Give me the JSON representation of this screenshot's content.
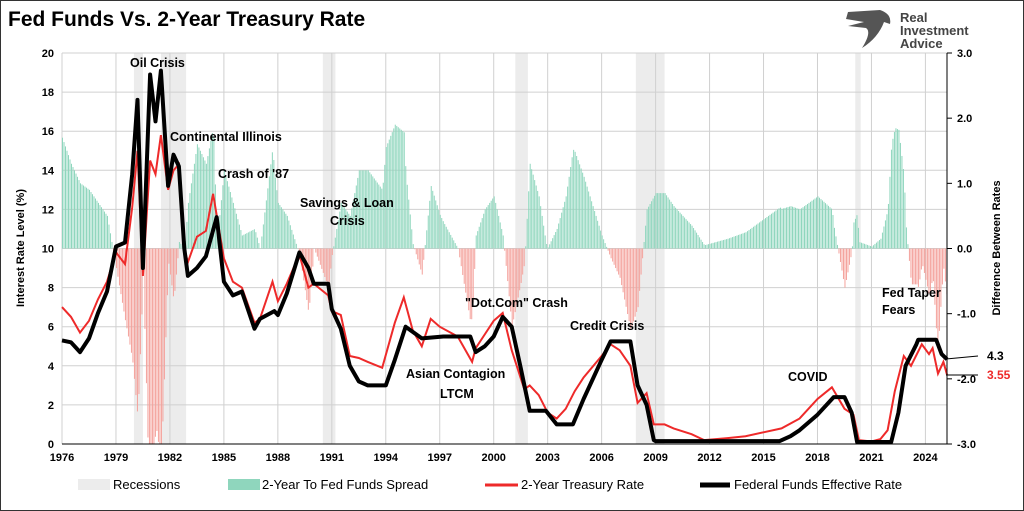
{
  "chart_data": {
    "type": "line",
    "title": "Fed Funds Vs. 2-Year Treasury Rate",
    "ylabel": "Interest Rate Level (%)",
    "y2label": "Difference Between Rates",
    "ylim": [
      0,
      20
    ],
    "y2lim": [
      -3.0,
      3.0
    ],
    "xlim": [
      1976,
      2025.2
    ],
    "x_ticks": [
      "1976",
      "1979",
      "1982",
      "1985",
      "1988",
      "1991",
      "1994",
      "1997",
      "2000",
      "2003",
      "2006",
      "2009",
      "2012",
      "2015",
      "2018",
      "2021",
      "2024"
    ],
    "y_ticks": [
      "0",
      "2",
      "4",
      "6",
      "8",
      "10",
      "12",
      "14",
      "16",
      "18",
      "20"
    ],
    "y2_ticks": [
      "-3.0",
      "-2.0",
      "-1.0",
      "0.0",
      "1.0",
      "2.0",
      "3.0"
    ],
    "grid": true,
    "legend_position": "bottom",
    "colors": {
      "recession": "#ececec",
      "spread_pos": "#8fd6bd",
      "spread_neg": "#f4a29c",
      "two_year": "#ee2a2a",
      "fed_funds": "#000000"
    },
    "recessions": [
      [
        1980.0,
        1980.5
      ],
      [
        1981.5,
        1982.9
      ],
      [
        1990.5,
        1991.2
      ],
      [
        2001.2,
        2001.9
      ],
      [
        2007.9,
        2009.5
      ],
      [
        2020.1,
        2020.4
      ]
    ],
    "series": [
      {
        "name": "Federal Funds Effective Rate",
        "points": [
          [
            1976,
            5.3
          ],
          [
            1976.5,
            5.2
          ],
          [
            1977,
            4.7
          ],
          [
            1977.5,
            5.4
          ],
          [
            1978,
            6.7
          ],
          [
            1978.5,
            7.8
          ],
          [
            1979,
            10.1
          ],
          [
            1979.5,
            10.3
          ],
          [
            1979.9,
            13.8
          ],
          [
            1980.2,
            17.6
          ],
          [
            1980.5,
            9.0
          ],
          [
            1980.9,
            18.9
          ],
          [
            1981.2,
            16.5
          ],
          [
            1981.5,
            19.1
          ],
          [
            1981.9,
            13.2
          ],
          [
            1982.2,
            14.8
          ],
          [
            1982.5,
            14.2
          ],
          [
            1982.8,
            10.0
          ],
          [
            1983,
            8.6
          ],
          [
            1983.5,
            9.0
          ],
          [
            1984,
            9.6
          ],
          [
            1984.6,
            11.6
          ],
          [
            1985,
            8.3
          ],
          [
            1985.5,
            7.6
          ],
          [
            1986,
            7.8
          ],
          [
            1986.7,
            5.9
          ],
          [
            1987,
            6.4
          ],
          [
            1987.8,
            6.8
          ],
          [
            1988,
            6.6
          ],
          [
            1988.5,
            7.7
          ],
          [
            1989.2,
            9.8
          ],
          [
            1989.7,
            9.0
          ],
          [
            1990,
            8.2
          ],
          [
            1990.8,
            8.2
          ],
          [
            1991,
            6.9
          ],
          [
            1991.5,
            5.9
          ],
          [
            1992,
            4.0
          ],
          [
            1992.5,
            3.2
          ],
          [
            1993,
            3.0
          ],
          [
            1994,
            3.0
          ],
          [
            1994.5,
            4.3
          ],
          [
            1995.1,
            6.0
          ],
          [
            1996,
            5.4
          ],
          [
            1997.2,
            5.5
          ],
          [
            1998.7,
            5.5
          ],
          [
            1999,
            4.7
          ],
          [
            1999.5,
            5.0
          ],
          [
            2000,
            5.5
          ],
          [
            2000.5,
            6.5
          ],
          [
            2001,
            6.0
          ],
          [
            2001.5,
            3.9
          ],
          [
            2002,
            1.7
          ],
          [
            2002.9,
            1.7
          ],
          [
            2003.5,
            1.0
          ],
          [
            2004.4,
            1.0
          ],
          [
            2005,
            2.3
          ],
          [
            2006,
            4.3
          ],
          [
            2006.5,
            5.25
          ],
          [
            2007.6,
            5.25
          ],
          [
            2008,
            3.0
          ],
          [
            2008.5,
            2.0
          ],
          [
            2008.9,
            0.2
          ],
          [
            2009,
            0.15
          ],
          [
            2015.9,
            0.15
          ],
          [
            2016.5,
            0.4
          ],
          [
            2017,
            0.7
          ],
          [
            2018,
            1.5
          ],
          [
            2018.9,
            2.4
          ],
          [
            2019.5,
            2.4
          ],
          [
            2019.9,
            1.6
          ],
          [
            2020.2,
            0.1
          ],
          [
            2022.1,
            0.1
          ],
          [
            2022.5,
            1.6
          ],
          [
            2022.9,
            4.0
          ],
          [
            2023.5,
            5.1
          ],
          [
            2023.6,
            5.33
          ],
          [
            2024.6,
            5.33
          ],
          [
            2024.9,
            4.6
          ],
          [
            2025.2,
            4.33
          ]
        ]
      },
      {
        "name": "2-Year Treasury Rate",
        "points": [
          [
            1976,
            7.0
          ],
          [
            1976.5,
            6.5
          ],
          [
            1977,
            5.7
          ],
          [
            1977.5,
            6.3
          ],
          [
            1978,
            7.4
          ],
          [
            1978.5,
            8.3
          ],
          [
            1979,
            9.8
          ],
          [
            1979.5,
            9.2
          ],
          [
            1979.9,
            12.1
          ],
          [
            1980.2,
            15.0
          ],
          [
            1980.5,
            8.6
          ],
          [
            1980.9,
            14.5
          ],
          [
            1981.2,
            13.8
          ],
          [
            1981.5,
            15.8
          ],
          [
            1981.9,
            13.0
          ],
          [
            1982.2,
            14.0
          ],
          [
            1982.5,
            14.3
          ],
          [
            1982.8,
            10.0
          ],
          [
            1983,
            9.3
          ],
          [
            1983.5,
            10.6
          ],
          [
            1984,
            10.9
          ],
          [
            1984.4,
            12.8
          ],
          [
            1985,
            9.5
          ],
          [
            1985.5,
            8.3
          ],
          [
            1986,
            8.0
          ],
          [
            1986.7,
            6.2
          ],
          [
            1987,
            6.4
          ],
          [
            1987.7,
            8.3
          ],
          [
            1988,
            7.3
          ],
          [
            1988.5,
            8.2
          ],
          [
            1989.2,
            9.7
          ],
          [
            1989.7,
            8.0
          ],
          [
            1990,
            8.2
          ],
          [
            1990.8,
            7.6
          ],
          [
            1991,
            6.8
          ],
          [
            1991.5,
            6.6
          ],
          [
            1992,
            4.5
          ],
          [
            1992.5,
            4.4
          ],
          [
            1993,
            4.2
          ],
          [
            1993.8,
            3.9
          ],
          [
            1994.5,
            6.2
          ],
          [
            1995,
            7.5
          ],
          [
            1995.5,
            5.8
          ],
          [
            1996,
            5.0
          ],
          [
            1996.5,
            6.4
          ],
          [
            1997,
            6.0
          ],
          [
            1998,
            5.5
          ],
          [
            1998.8,
            4.2
          ],
          [
            1999,
            4.9
          ],
          [
            1999.5,
            5.6
          ],
          [
            2000,
            6.3
          ],
          [
            2000.5,
            6.7
          ],
          [
            2001,
            4.8
          ],
          [
            2001.7,
            2.8
          ],
          [
            2002,
            3.0
          ],
          [
            2002.5,
            2.5
          ],
          [
            2003,
            1.6
          ],
          [
            2003.5,
            1.3
          ],
          [
            2004,
            1.8
          ],
          [
            2004.5,
            2.7
          ],
          [
            2005,
            3.4
          ],
          [
            2006,
            4.5
          ],
          [
            2006.5,
            5.1
          ],
          [
            2007,
            4.8
          ],
          [
            2007.6,
            4.0
          ],
          [
            2008,
            2.1
          ],
          [
            2008.5,
            2.6
          ],
          [
            2008.9,
            1.0
          ],
          [
            2009.5,
            1.0
          ],
          [
            2010,
            0.8
          ],
          [
            2011,
            0.5
          ],
          [
            2011.7,
            0.2
          ],
          [
            2013,
            0.3
          ],
          [
            2014,
            0.4
          ],
          [
            2015,
            0.6
          ],
          [
            2016,
            0.8
          ],
          [
            2017,
            1.3
          ],
          [
            2018,
            2.3
          ],
          [
            2018.8,
            2.9
          ],
          [
            2019.5,
            1.8
          ],
          [
            2020,
            1.5
          ],
          [
            2020.3,
            0.2
          ],
          [
            2021,
            0.13
          ],
          [
            2021.5,
            0.25
          ],
          [
            2021.9,
            0.7
          ],
          [
            2022.3,
            2.7
          ],
          [
            2022.8,
            4.5
          ],
          [
            2023.2,
            4.0
          ],
          [
            2023.8,
            5.1
          ],
          [
            2024.2,
            4.6
          ],
          [
            2024.4,
            4.9
          ],
          [
            2024.7,
            3.6
          ],
          [
            2025,
            4.2
          ],
          [
            2025.2,
            3.55
          ]
        ]
      }
    ],
    "end_labels": {
      "fed_funds": "4.3",
      "two_year": "3.55"
    },
    "annotations": [
      {
        "text": "Oil Crisis"
      },
      {
        "text": "Continental Illinois"
      },
      {
        "text": "Crash of '87"
      },
      {
        "text": "Savings & Loan"
      },
      {
        "text": "Crisis"
      },
      {
        "text": "\"Dot.Com\" Crash"
      },
      {
        "text": "Credit Crisis"
      },
      {
        "text": "Asian Contagion"
      },
      {
        "text": "LTCM"
      },
      {
        "text": "COVID"
      },
      {
        "text": "Fed Taper"
      },
      {
        "text": "Fears"
      }
    ],
    "legend": [
      "Recessions",
      "2-Year To Fed Funds Spread",
      "2-Year Treasury Rate",
      "Federal Funds Effective Rate"
    ]
  },
  "logo": {
    "line1": "Real",
    "line2": "Investment",
    "line3": "Advice"
  }
}
